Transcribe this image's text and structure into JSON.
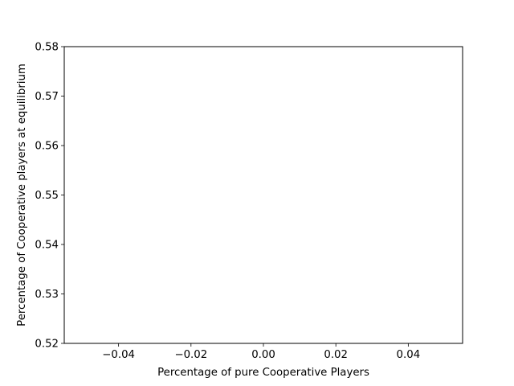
{
  "chart_data": {
    "type": "line",
    "title": "",
    "xlabel": "Percentage of pure Cooperative Players",
    "ylabel": "Percentage of Cooperative players at equilibrium",
    "xlim": [
      -0.055,
      0.055
    ],
    "ylim": [
      0.52,
      0.58
    ],
    "xticks": [
      -0.04,
      -0.02,
      0.0,
      0.02,
      0.04
    ],
    "xtick_labels": [
      "−0.04",
      "−0.02",
      "0.00",
      "0.02",
      "0.04"
    ],
    "yticks": [
      0.52,
      0.53,
      0.54,
      0.55,
      0.56,
      0.57,
      0.58
    ],
    "ytick_labels": [
      "0.52",
      "0.53",
      "0.54",
      "0.55",
      "0.56",
      "0.57",
      "0.58"
    ],
    "grid": false,
    "series": [
      {
        "x": [],
        "y": []
      }
    ]
  }
}
